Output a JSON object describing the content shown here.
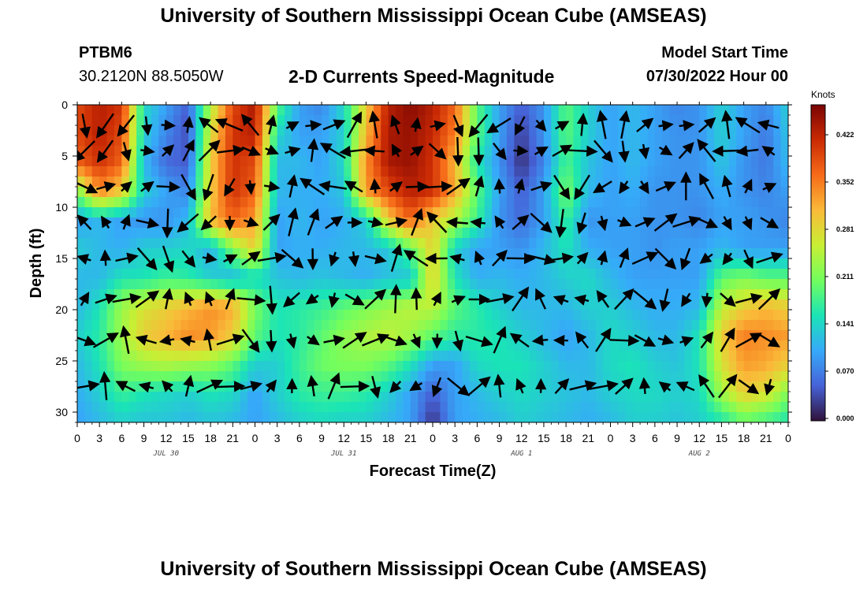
{
  "header": {
    "title": "University of Southern Mississippi Ocean Cube (AMSEAS)",
    "station": "PTBM6",
    "coordinates": "30.2120N  88.5050W",
    "plot_title": "2-D Currents Speed-Magnitude",
    "model_start_label": "Model Start Time",
    "model_start_value": "07/30/2022 Hour 00"
  },
  "footer": {
    "title": "University of Southern Mississippi Ocean Cube (AMSEAS)"
  },
  "colorbar": {
    "unit": "Knots",
    "ticks": [
      "0.422",
      "0.352",
      "0.281",
      "0.211",
      "0.141",
      "0.070",
      "0.000"
    ],
    "min": 0.0,
    "max": 0.48,
    "colors": [
      "#30123b",
      "#4662d7",
      "#36aaf9",
      "#1ae4b6",
      "#72fe5e",
      "#c8ef34",
      "#faba39",
      "#f66b19",
      "#ca2a04",
      "#7a0403"
    ]
  },
  "chart_data": {
    "type": "heatmap",
    "xlabel": "Forecast Time(Z)",
    "ylabel": "Depth (ft)",
    "x_hours_range": [
      0,
      96
    ],
    "x_tick_labels": [
      "0",
      "3",
      "6",
      "9",
      "12",
      "15",
      "18",
      "21",
      "0",
      "3",
      "6",
      "9",
      "12",
      "15",
      "18",
      "21",
      "0",
      "3",
      "6",
      "9",
      "12",
      "15",
      "18",
      "21",
      "0",
      "3",
      "6",
      "9",
      "12",
      "15",
      "18",
      "21",
      "0"
    ],
    "date_labels": [
      {
        "text": "JUL 30",
        "hour": 12
      },
      {
        "text": "JUL 31",
        "hour": 36
      },
      {
        "text": "AUG 1",
        "hour": 60
      },
      {
        "text": "AUG 2",
        "hour": 84
      }
    ],
    "y_ticks": [
      0,
      5,
      10,
      15,
      20,
      25,
      30
    ],
    "ylim": [
      0,
      31
    ],
    "speed_knots": [
      [
        0.4,
        0.44,
        0.42,
        0.15,
        0.1,
        0.05,
        0.25,
        0.4,
        0.45,
        0.2,
        0.1,
        0.08,
        0.15,
        0.3,
        0.44,
        0.47,
        0.44,
        0.38,
        0.2,
        0.1,
        0.05,
        0.09,
        0.2,
        0.14,
        0.1,
        0.12,
        0.1,
        0.08,
        0.09,
        0.14,
        0.1,
        0.08,
        0.14
      ],
      [
        0.4,
        0.44,
        0.4,
        0.14,
        0.08,
        0.04,
        0.28,
        0.42,
        0.44,
        0.15,
        0.1,
        0.1,
        0.14,
        0.32,
        0.45,
        0.46,
        0.43,
        0.36,
        0.2,
        0.1,
        0.03,
        0.09,
        0.2,
        0.14,
        0.1,
        0.12,
        0.1,
        0.09,
        0.09,
        0.14,
        0.1,
        0.07,
        0.13
      ],
      [
        0.38,
        0.42,
        0.38,
        0.12,
        0.06,
        0.05,
        0.3,
        0.42,
        0.4,
        0.12,
        0.12,
        0.1,
        0.15,
        0.35,
        0.45,
        0.46,
        0.42,
        0.32,
        0.16,
        0.09,
        0.02,
        0.08,
        0.19,
        0.13,
        0.1,
        0.12,
        0.1,
        0.09,
        0.09,
        0.13,
        0.09,
        0.07,
        0.12
      ],
      [
        0.22,
        0.35,
        0.3,
        0.14,
        0.1,
        0.08,
        0.3,
        0.42,
        0.38,
        0.12,
        0.11,
        0.11,
        0.13,
        0.34,
        0.4,
        0.44,
        0.42,
        0.33,
        0.2,
        0.1,
        0.05,
        0.1,
        0.22,
        0.12,
        0.1,
        0.11,
        0.09,
        0.09,
        0.09,
        0.11,
        0.09,
        0.08,
        0.1
      ],
      [
        0.1,
        0.12,
        0.1,
        0.09,
        0.09,
        0.12,
        0.32,
        0.38,
        0.34,
        0.1,
        0.12,
        0.1,
        0.11,
        0.14,
        0.3,
        0.38,
        0.3,
        0.25,
        0.18,
        0.09,
        0.06,
        0.1,
        0.18,
        0.09,
        0.1,
        0.1,
        0.09,
        0.09,
        0.08,
        0.1,
        0.1,
        0.09,
        0.08
      ],
      [
        0.14,
        0.12,
        0.11,
        0.14,
        0.14,
        0.15,
        0.11,
        0.22,
        0.3,
        0.1,
        0.11,
        0.11,
        0.12,
        0.12,
        0.13,
        0.2,
        0.3,
        0.14,
        0.1,
        0.1,
        0.09,
        0.12,
        0.16,
        0.11,
        0.1,
        0.1,
        0.09,
        0.1,
        0.1,
        0.12,
        0.1,
        0.1,
        0.1
      ],
      [
        0.12,
        0.12,
        0.16,
        0.16,
        0.18,
        0.17,
        0.14,
        0.12,
        0.15,
        0.13,
        0.12,
        0.13,
        0.12,
        0.11,
        0.13,
        0.13,
        0.3,
        0.16,
        0.11,
        0.12,
        0.11,
        0.12,
        0.14,
        0.15,
        0.12,
        0.1,
        0.1,
        0.1,
        0.1,
        0.2,
        0.22,
        0.2,
        0.2
      ],
      [
        0.12,
        0.16,
        0.24,
        0.28,
        0.3,
        0.32,
        0.35,
        0.33,
        0.22,
        0.16,
        0.17,
        0.18,
        0.2,
        0.22,
        0.24,
        0.26,
        0.26,
        0.2,
        0.17,
        0.14,
        0.12,
        0.12,
        0.12,
        0.14,
        0.14,
        0.12,
        0.11,
        0.11,
        0.12,
        0.26,
        0.3,
        0.32,
        0.3
      ],
      [
        0.14,
        0.17,
        0.24,
        0.3,
        0.32,
        0.35,
        0.34,
        0.3,
        0.2,
        0.16,
        0.17,
        0.2,
        0.23,
        0.25,
        0.26,
        0.24,
        0.2,
        0.17,
        0.17,
        0.16,
        0.14,
        0.12,
        0.1,
        0.12,
        0.15,
        0.14,
        0.12,
        0.12,
        0.16,
        0.3,
        0.36,
        0.35,
        0.34
      ],
      [
        0.12,
        0.16,
        0.22,
        0.24,
        0.25,
        0.24,
        0.23,
        0.2,
        0.14,
        0.14,
        0.18,
        0.21,
        0.22,
        0.22,
        0.2,
        0.16,
        0.1,
        0.1,
        0.15,
        0.16,
        0.16,
        0.14,
        0.12,
        0.12,
        0.15,
        0.16,
        0.14,
        0.13,
        0.16,
        0.28,
        0.34,
        0.33,
        0.3
      ],
      [
        0.11,
        0.14,
        0.18,
        0.16,
        0.15,
        0.14,
        0.16,
        0.15,
        0.1,
        0.14,
        0.17,
        0.18,
        0.18,
        0.17,
        0.14,
        0.1,
        0.05,
        0.1,
        0.12,
        0.14,
        0.15,
        0.14,
        0.13,
        0.12,
        0.14,
        0.15,
        0.15,
        0.14,
        0.15,
        0.24,
        0.3,
        0.28,
        0.22
      ],
      [
        0.1,
        0.12,
        0.14,
        0.13,
        0.13,
        0.12,
        0.13,
        0.12,
        0.1,
        0.12,
        0.14,
        0.15,
        0.14,
        0.14,
        0.12,
        0.1,
        0.02,
        0.1,
        0.11,
        0.12,
        0.14,
        0.13,
        0.12,
        0.11,
        0.12,
        0.14,
        0.14,
        0.13,
        0.14,
        0.16,
        0.2,
        0.18,
        0.16
      ]
    ],
    "vectors_note": "Arrows indicate current direction at each time/depth cell"
  }
}
